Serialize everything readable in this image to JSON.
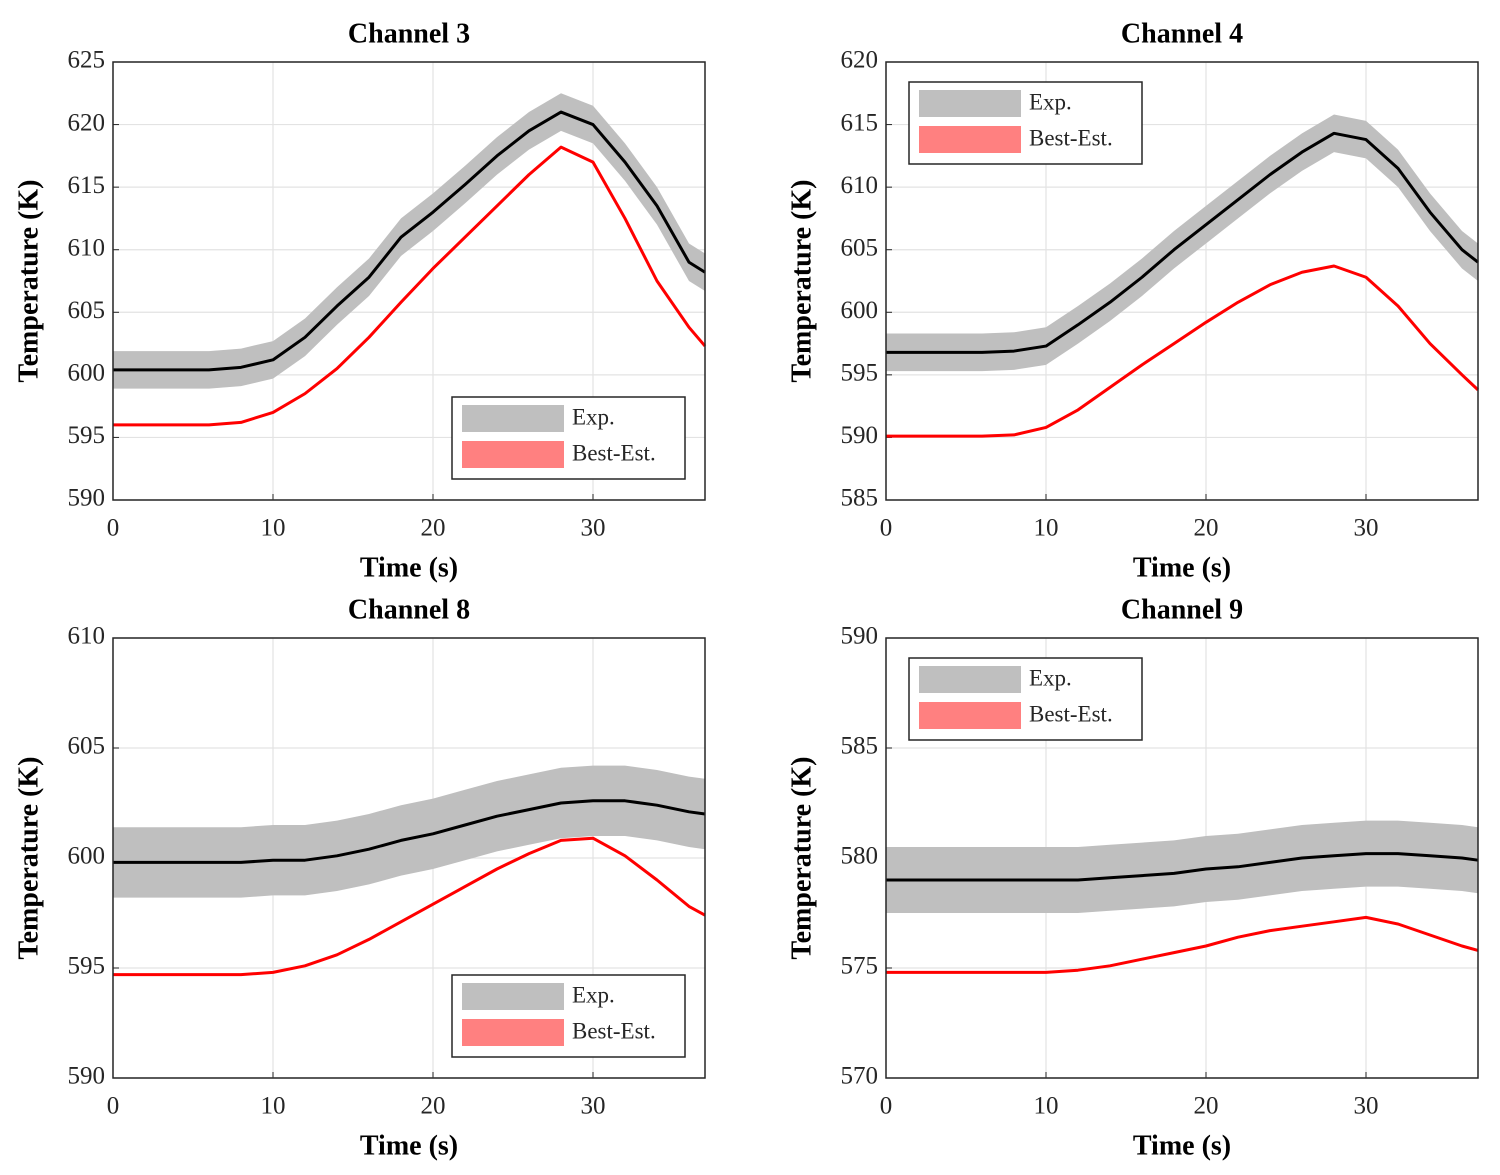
{
  "chart_data": [
    {
      "type": "line",
      "title": "Channel 3",
      "xlabel": "Time (s)",
      "ylabel": "Temperature (K)",
      "x": [
        0,
        2,
        4,
        6,
        8,
        10,
        12,
        14,
        16,
        18,
        20,
        22,
        24,
        26,
        28,
        30,
        32,
        34,
        36,
        37
      ],
      "xlim": [
        0,
        37
      ],
      "xticks": [
        0,
        10,
        20,
        30
      ],
      "ylim": [
        590,
        625
      ],
      "yticks": [
        590,
        595,
        600,
        605,
        610,
        615,
        620,
        625
      ],
      "grid": true,
      "legend": "lower right",
      "series": [
        {
          "name": "Exp.",
          "color": "#000000",
          "band_color": "#bfbfbf",
          "uncertainty": 1.5,
          "values": [
            600.4,
            600.4,
            600.4,
            600.4,
            600.6,
            601.2,
            603,
            605.5,
            607.8,
            611,
            613,
            615.2,
            617.5,
            619.5,
            621,
            620,
            617,
            613.5,
            609,
            608.2
          ]
        },
        {
          "name": "Best-Est.",
          "color": "#ff0000",
          "band_color": "#ff8080",
          "values": [
            596,
            596,
            596,
            596,
            596.2,
            597,
            598.5,
            600.5,
            603,
            605.8,
            608.5,
            611,
            613.5,
            616,
            618.2,
            617,
            612.5,
            607.5,
            603.8,
            602.3
          ]
        }
      ]
    },
    {
      "type": "line",
      "title": "Channel 4",
      "xlabel": "Time (s)",
      "ylabel": "Temperature (K)",
      "x": [
        0,
        2,
        4,
        6,
        8,
        10,
        12,
        14,
        16,
        18,
        20,
        22,
        24,
        26,
        28,
        30,
        32,
        34,
        36,
        37
      ],
      "xlim": [
        0,
        37
      ],
      "xticks": [
        0,
        10,
        20,
        30
      ],
      "ylim": [
        585,
        620
      ],
      "yticks": [
        585,
        590,
        595,
        600,
        605,
        610,
        615,
        620
      ],
      "grid": true,
      "legend": "upper left",
      "series": [
        {
          "name": "Exp.",
          "color": "#000000",
          "band_color": "#bfbfbf",
          "uncertainty": 1.5,
          "values": [
            596.8,
            596.8,
            596.8,
            596.8,
            596.9,
            597.3,
            599,
            600.8,
            602.8,
            605,
            607,
            609,
            611,
            612.8,
            614.3,
            613.8,
            611.5,
            608,
            605,
            604
          ]
        },
        {
          "name": "Best-Est.",
          "color": "#ff0000",
          "band_color": "#ff8080",
          "values": [
            590.1,
            590.1,
            590.1,
            590.1,
            590.2,
            590.8,
            592.2,
            594,
            595.8,
            597.5,
            599.2,
            600.8,
            602.2,
            603.2,
            603.7,
            602.8,
            600.5,
            597.5,
            595,
            593.8
          ]
        }
      ]
    },
    {
      "type": "line",
      "title": "Channel 8",
      "xlabel": "Time (s)",
      "ylabel": "Temperature (K)",
      "x": [
        0,
        2,
        4,
        6,
        8,
        10,
        12,
        14,
        16,
        18,
        20,
        22,
        24,
        26,
        28,
        30,
        32,
        34,
        36,
        37
      ],
      "xlim": [
        0,
        37
      ],
      "xticks": [
        0,
        10,
        20,
        30
      ],
      "ylim": [
        590,
        610
      ],
      "yticks": [
        590,
        595,
        600,
        605,
        610
      ],
      "grid": true,
      "legend": "lower right",
      "series": [
        {
          "name": "Exp.",
          "color": "#000000",
          "band_color": "#bfbfbf",
          "uncertainty": 1.6,
          "values": [
            599.8,
            599.8,
            599.8,
            599.8,
            599.8,
            599.9,
            599.9,
            600.1,
            600.4,
            600.8,
            601.1,
            601.5,
            601.9,
            602.2,
            602.5,
            602.6,
            602.6,
            602.4,
            602.1,
            602
          ]
        },
        {
          "name": "Best-Est.",
          "color": "#ff0000",
          "band_color": "#ff8080",
          "values": [
            594.7,
            594.7,
            594.7,
            594.7,
            594.7,
            594.8,
            595.1,
            595.6,
            596.3,
            597.1,
            597.9,
            598.7,
            599.5,
            600.2,
            600.8,
            600.9,
            600.1,
            599,
            597.8,
            597.4
          ]
        }
      ]
    },
    {
      "type": "line",
      "title": "Channel 9",
      "xlabel": "Time (s)",
      "ylabel": "Temperature (K)",
      "x": [
        0,
        2,
        4,
        6,
        8,
        10,
        12,
        14,
        16,
        18,
        20,
        22,
        24,
        26,
        28,
        30,
        32,
        34,
        36,
        37
      ],
      "xlim": [
        0,
        37
      ],
      "xticks": [
        0,
        10,
        20,
        30
      ],
      "ylim": [
        570,
        590
      ],
      "yticks": [
        570,
        575,
        580,
        585,
        590
      ],
      "grid": true,
      "legend": "upper left",
      "series": [
        {
          "name": "Exp.",
          "color": "#000000",
          "band_color": "#bfbfbf",
          "uncertainty": 1.5,
          "values": [
            579,
            579,
            579,
            579,
            579,
            579,
            579,
            579.1,
            579.2,
            579.3,
            579.5,
            579.6,
            579.8,
            580,
            580.1,
            580.2,
            580.2,
            580.1,
            580,
            579.9
          ]
        },
        {
          "name": "Best-Est.",
          "color": "#ff0000",
          "band_color": "#ff8080",
          "values": [
            574.8,
            574.8,
            574.8,
            574.8,
            574.8,
            574.8,
            574.9,
            575.1,
            575.4,
            575.7,
            576,
            576.4,
            576.7,
            576.9,
            577.1,
            577.3,
            577,
            576.5,
            576,
            575.8
          ]
        }
      ]
    }
  ]
}
